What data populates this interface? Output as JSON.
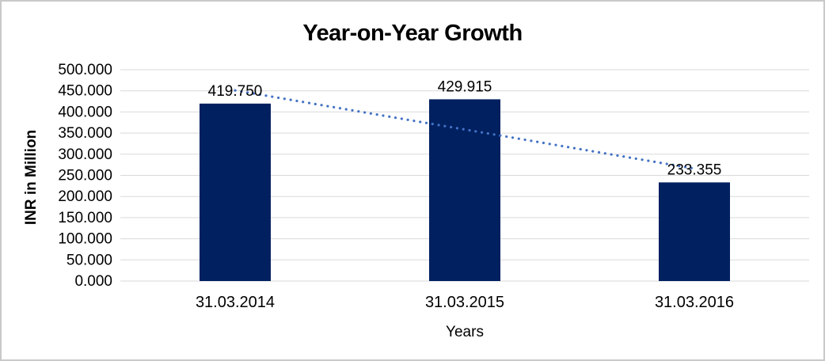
{
  "window": {
    "background": "#ffffff",
    "border_color": "#c9c9c9"
  },
  "chart_data": {
    "type": "bar",
    "title": "Year-on-Year Growth",
    "xlabel": "Years",
    "ylabel": "INR in Million",
    "categories": [
      "31.03.2014",
      "31.03.2015",
      "31.03.2016"
    ],
    "values": [
      419.75,
      429.915,
      233.355
    ],
    "value_labels": [
      "419.750",
      "429.915",
      "233.355"
    ],
    "ylim": [
      0,
      500
    ],
    "ytick_step": 50,
    "ytick_labels": [
      "0.000",
      "50.000",
      "100.000",
      "150.000",
      "200.000",
      "250.000",
      "300.000",
      "350.000",
      "400.000",
      "450.000",
      "500.000"
    ],
    "grid": true,
    "legend": false,
    "colors": {
      "bar": "#002060",
      "trendline": "#4472c4",
      "gridline": "#d9d9d9",
      "text": "#000000"
    },
    "trendline": {
      "type": "linear",
      "style": "dotted",
      "start_value": 451,
      "end_value": 266,
      "start_category_index": 0,
      "end_category_index": 2
    }
  }
}
